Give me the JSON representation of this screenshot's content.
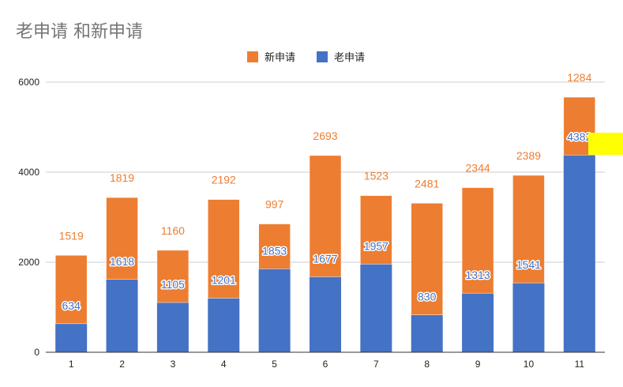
{
  "chart_data": {
    "type": "bar",
    "stacked": true,
    "title": "老申请 和新申请",
    "categories": [
      "1",
      "2",
      "3",
      "4",
      "5",
      "6",
      "7",
      "8",
      "9",
      "10",
      "11"
    ],
    "series": [
      {
        "name": "老申请",
        "color": "#4472c4",
        "values": [
          634,
          1618,
          1105,
          1201,
          1853,
          1677,
          1957,
          830,
          1313,
          1541,
          4382
        ]
      },
      {
        "name": "新申请",
        "color": "#ed7d31",
        "values": [
          1519,
          1819,
          1160,
          2192,
          997,
          2693,
          1523,
          2481,
          2344,
          2389,
          1284
        ]
      }
    ],
    "legend_order": [
      "新申请",
      "老申请"
    ],
    "legend_position": "top",
    "yticks": [
      "0",
      "2000",
      "4000",
      "6000"
    ],
    "ylim": [
      0,
      6000
    ],
    "grid": true,
    "xlabel": "",
    "ylabel": "",
    "highlight_color": "#ffff00"
  }
}
